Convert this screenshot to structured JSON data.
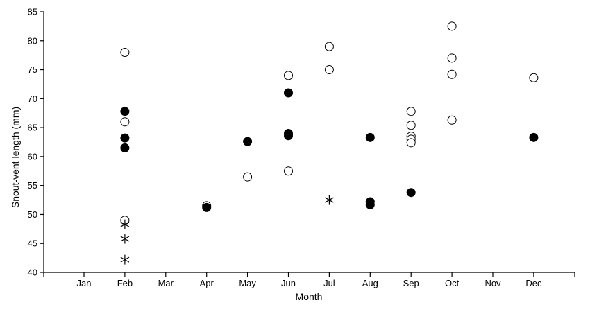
{
  "chart_data": {
    "type": "scatter",
    "xlabel": "Month",
    "ylabel": "Snout-vent length (mm)",
    "categories": [
      "Jan",
      "Feb",
      "Mar",
      "Apr",
      "May",
      "Jun",
      "Jul",
      "Aug",
      "Sep",
      "Oct",
      "Nov",
      "Dec"
    ],
    "ylim": [
      40,
      85
    ],
    "yticks": [
      40,
      45,
      50,
      55,
      60,
      65,
      70,
      75,
      80,
      85
    ],
    "grid": false,
    "legend": "none",
    "series": [
      {
        "marker": "open-circle",
        "points": [
          {
            "x": "Feb",
            "y": 78.0
          },
          {
            "x": "Feb",
            "y": 66.0
          },
          {
            "x": "Feb",
            "y": 49.0
          },
          {
            "x": "Apr",
            "y": 51.5
          },
          {
            "x": "May",
            "y": 56.5
          },
          {
            "x": "Jun",
            "y": 74.0
          },
          {
            "x": "Jun",
            "y": 57.5
          },
          {
            "x": "Jul",
            "y": 79.0
          },
          {
            "x": "Jul",
            "y": 75.0
          },
          {
            "x": "Sep",
            "y": 67.8
          },
          {
            "x": "Sep",
            "y": 65.4
          },
          {
            "x": "Sep",
            "y": 63.5
          },
          {
            "x": "Sep",
            "y": 63.0
          },
          {
            "x": "Sep",
            "y": 62.4
          },
          {
            "x": "Oct",
            "y": 82.5
          },
          {
            "x": "Oct",
            "y": 77.0
          },
          {
            "x": "Oct",
            "y": 74.2
          },
          {
            "x": "Oct",
            "y": 66.3
          },
          {
            "x": "Dec",
            "y": 73.6
          }
        ]
      },
      {
        "marker": "filled-circle",
        "points": [
          {
            "x": "Feb",
            "y": 67.8
          },
          {
            "x": "Feb",
            "y": 63.2
          },
          {
            "x": "Feb",
            "y": 61.5
          },
          {
            "x": "Apr",
            "y": 51.2
          },
          {
            "x": "May",
            "y": 62.6
          },
          {
            "x": "Jun",
            "y": 71.0
          },
          {
            "x": "Jun",
            "y": 64.0
          },
          {
            "x": "Jun",
            "y": 63.6
          },
          {
            "x": "Aug",
            "y": 63.3
          },
          {
            "x": "Aug",
            "y": 52.2
          },
          {
            "x": "Aug",
            "y": 51.7
          },
          {
            "x": "Sep",
            "y": 53.8
          },
          {
            "x": "Dec",
            "y": 63.3
          }
        ]
      },
      {
        "marker": "asterisk",
        "points": [
          {
            "x": "Feb",
            "y": 48.3
          },
          {
            "x": "Feb",
            "y": 45.8
          },
          {
            "x": "Feb",
            "y": 42.2
          },
          {
            "x": "Jul",
            "y": 52.5
          }
        ]
      }
    ]
  }
}
